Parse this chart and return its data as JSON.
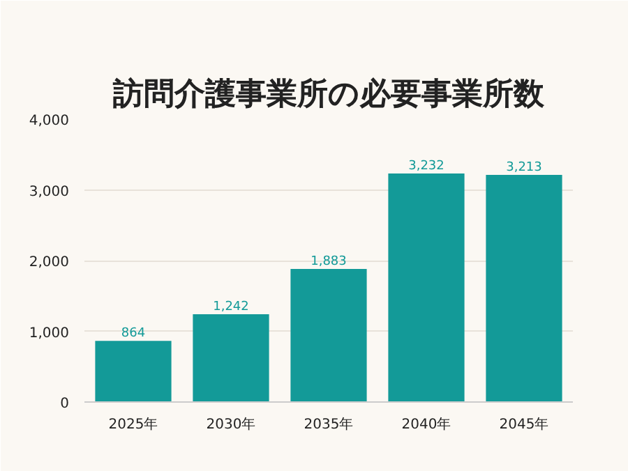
{
  "chart_data": {
    "type": "bar",
    "title": "訪問介護事業所の必要事業所数",
    "categories": [
      "2025年",
      "2030年",
      "2035年",
      "2040年",
      "2045年"
    ],
    "values": [
      864,
      1242,
      1883,
      3232,
      3213
    ],
    "value_labels": [
      "864",
      "1,242",
      "1,883",
      "3,232",
      "3,213"
    ],
    "color": "#139a98",
    "ylim": [
      0,
      4000
    ],
    "yticks": [
      {
        "value": 0,
        "label": "0"
      },
      {
        "value": 1000,
        "label": "1,000"
      },
      {
        "value": 2000,
        "label": "2,000"
      },
      {
        "value": 3000,
        "label": "3,000"
      },
      {
        "value": 4000,
        "label": "4,000"
      }
    ],
    "grid": "y"
  }
}
